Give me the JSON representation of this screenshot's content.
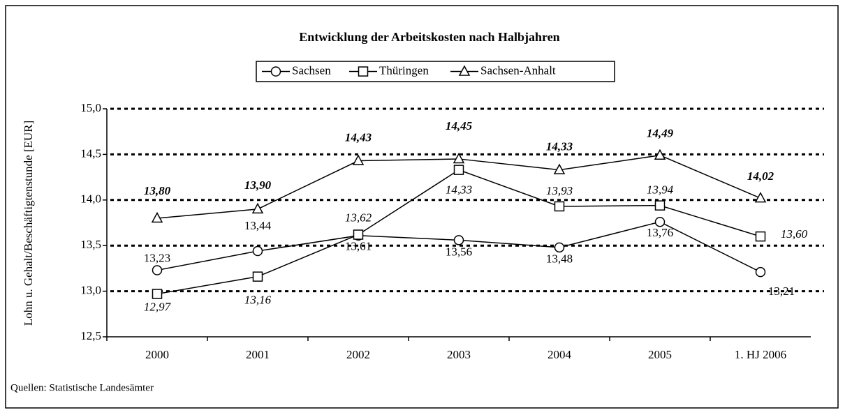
{
  "chart_data": {
    "type": "line",
    "title": "Entwicklung der Arbeitskosten nach Halbjahren",
    "y_label": "Lohn u. Gehalt/Beschäftigtenstunde [EUR]",
    "source": "Quellen: Statistische Landesämter",
    "categories": [
      "2000",
      "2001",
      "2002",
      "2003",
      "2004",
      "2005",
      "1. HJ 2006"
    ],
    "series": [
      {
        "name": "Sachsen",
        "color": "#000000",
        "marker": "circle",
        "values": [
          13.23,
          13.44,
          13.61,
          13.56,
          13.48,
          13.76,
          13.21
        ],
        "value_labels": [
          "13,23",
          "13,44",
          "13,61",
          "13,56",
          "13,48",
          "13,76",
          "13,21"
        ]
      },
      {
        "name": "Thüringen",
        "color": "#000000",
        "marker": "square",
        "values": [
          12.97,
          13.16,
          13.62,
          14.33,
          13.93,
          13.94,
          13.6
        ],
        "value_labels": [
          "12,97",
          "13,16",
          "13,62",
          "14,33",
          "13,93",
          "13,94",
          "13,60"
        ]
      },
      {
        "name": "Sachsen-Anhalt",
        "color": "#000000",
        "marker": "triangle",
        "values": [
          13.8,
          13.9,
          14.43,
          14.45,
          14.33,
          14.49,
          14.02
        ],
        "value_labels": [
          "13,80",
          "13,90",
          "14,43",
          "14,45",
          "14,33",
          "14,49",
          "14,02"
        ]
      }
    ],
    "ylim": [
      12.5,
      15.0
    ],
    "yticks": [
      {
        "value": 12.5,
        "label": "12,5"
      },
      {
        "value": 13.0,
        "label": "13,0"
      },
      {
        "value": 13.5,
        "label": "13,5"
      },
      {
        "value": 14.0,
        "label": "14,0"
      },
      {
        "value": 14.5,
        "label": "14,5"
      },
      {
        "value": 15.0,
        "label": "15,0"
      }
    ],
    "grid": true,
    "legend": "top"
  }
}
